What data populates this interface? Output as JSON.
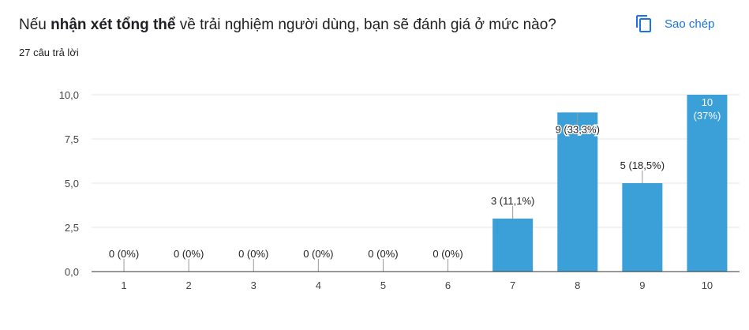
{
  "question": {
    "prefix": "Nếu ",
    "bold": "nhận xét tổng thể",
    "suffix": " về trải nghiệm người dùng, bạn sẽ đánh giá ở mức nào?"
  },
  "response_count": "27 câu trả lời",
  "copy_button": {
    "label": "Sao chép",
    "icon": "copy-icon"
  },
  "colors": {
    "bar": "#3b9fd8",
    "accent": "#1a73e8",
    "grid": "#e6e6e6",
    "axis": "#333333"
  },
  "chart_data": {
    "type": "bar",
    "categories": [
      "1",
      "2",
      "3",
      "4",
      "5",
      "6",
      "7",
      "8",
      "9",
      "10"
    ],
    "values": [
      0,
      0,
      0,
      0,
      0,
      0,
      3,
      9,
      5,
      10
    ],
    "data_labels": [
      [
        "0 (0%)"
      ],
      [
        "0 (0%)"
      ],
      [
        "0 (0%)"
      ],
      [
        "0 (0%)"
      ],
      [
        "0 (0%)"
      ],
      [
        "0 (0%)"
      ],
      [
        "3 (11,1%)"
      ],
      [
        "9 (33,3%)"
      ],
      [
        "5 (18,5%)"
      ],
      [
        "10",
        "(37%)"
      ]
    ],
    "y_ticks": [
      "0,0",
      "2,5",
      "5,0",
      "7,5",
      "10,0"
    ],
    "y_tick_values": [
      0,
      2.5,
      5,
      7.5,
      10
    ],
    "ylim": [
      0,
      10
    ],
    "grid": true,
    "title": "",
    "xlabel": "",
    "ylabel": ""
  }
}
